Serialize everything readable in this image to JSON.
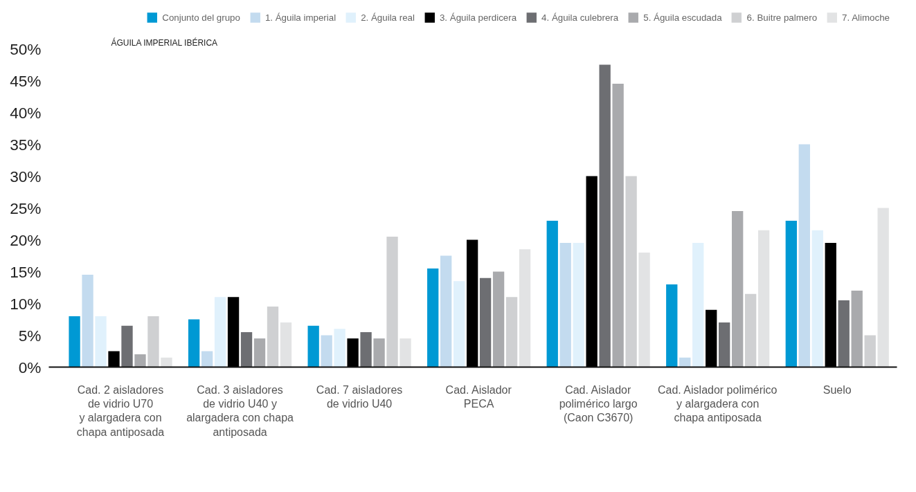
{
  "chart_data": {
    "type": "bar",
    "title": "ÁGUILA IMPERIAL IBÉRICA",
    "categories": [
      "Cad. 2 aisladores\nde vidrio U70\ny alargadera con\nchapa antiposada",
      "Cad. 3 aisladores\nde vidrio U40 y\nalargadera con chapa\nantiposada",
      "Cad. 7 aisladores\nde vidrio U40",
      "Cad. Aislador\nPECA",
      "Cad. Aislador\npolimérico largo\n(Caon C3670)",
      "Cad. Aislador polimérico\ny alargadera con\nchapa antiposada",
      "Suelo"
    ],
    "series": [
      {
        "name": "Conjunto del grupo",
        "color": "#0099d4",
        "values": [
          8,
          7.5,
          6.5,
          15.5,
          23,
          13,
          23
        ]
      },
      {
        "name": "1. Águila imperial",
        "color": "#c3dbef",
        "values": [
          14.5,
          2.5,
          5,
          17.5,
          19.5,
          1.5,
          35
        ]
      },
      {
        "name": "2. Águila real",
        "color": "#e0f1fc",
        "values": [
          8,
          11,
          6,
          13.5,
          19.5,
          19.5,
          21.5
        ]
      },
      {
        "name": "3. Águila perdicera",
        "color": "#000000",
        "values": [
          2.5,
          11,
          4.5,
          20,
          30,
          9,
          19.5
        ]
      },
      {
        "name": "4. Águila culebrera",
        "color": "#6d6e72",
        "values": [
          6.5,
          5.5,
          5.5,
          14,
          47.5,
          7,
          10.5
        ]
      },
      {
        "name": "5. Águila escudada",
        "color": "#a9aaad",
        "values": [
          2,
          4.5,
          4.5,
          15,
          44.5,
          24.5,
          12
        ]
      },
      {
        "name": "6. Buitre palmero",
        "color": "#cfd0d2",
        "values": [
          8,
          9.5,
          20.5,
          11,
          30,
          11.5,
          5
        ]
      },
      {
        "name": "7. Alimoche",
        "color": "#e2e3e4",
        "values": [
          1.5,
          7,
          4.5,
          18.5,
          18,
          21.5,
          25
        ]
      }
    ],
    "ylim": [
      0,
      50
    ],
    "yticks": [
      {
        "value": 0,
        "label": "0%"
      },
      {
        "value": 5,
        "label": "5%"
      },
      {
        "value": 10,
        "label": "10%"
      },
      {
        "value": 15,
        "label": "15%"
      },
      {
        "value": 20,
        "label": "20%"
      },
      {
        "value": 25,
        "label": "25%"
      },
      {
        "value": 30,
        "label": "30%"
      },
      {
        "value": 35,
        "label": "35%"
      },
      {
        "value": 40,
        "label": "40%"
      },
      {
        "value": 45,
        "label": "45%"
      },
      {
        "value": 50,
        "label": "50%"
      }
    ],
    "grid": false,
    "legend": "top"
  }
}
